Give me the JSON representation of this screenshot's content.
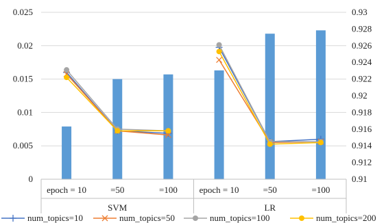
{
  "chart_data": {
    "type": "bar+line",
    "categories": [
      "epoch = 10",
      "=50",
      "=100",
      "epoch = 10",
      "=50",
      "=100"
    ],
    "groups": [
      {
        "label": "SVM",
        "span": [
          0,
          2
        ]
      },
      {
        "label": "LR",
        "span": [
          3,
          5
        ]
      }
    ],
    "bar_series": {
      "axis": "left",
      "color": "#5B9BD5",
      "values": [
        0.0079,
        0.015,
        0.0157,
        0.0163,
        0.0218,
        0.0223
      ]
    },
    "line_series": [
      {
        "name": "num_topics=10",
        "axis": "right",
        "color": "#4472C4",
        "marker": "plus",
        "values": [
          0.9228,
          0.9158,
          0.9155,
          0.9258,
          0.9145,
          0.9148
        ]
      },
      {
        "name": "num_topics=50",
        "axis": "right",
        "color": "#ED7D31",
        "marker": "x",
        "values": [
          0.9226,
          0.9158,
          0.9153,
          0.9243,
          0.9144,
          0.9145
        ]
      },
      {
        "name": "num_topics=100",
        "axis": "right",
        "color": "#A5A5A5",
        "marker": "circle",
        "values": [
          0.9231,
          0.916,
          0.9158,
          0.9261,
          0.9145,
          0.9145
        ]
      },
      {
        "name": "num_topics=200",
        "axis": "right",
        "color": "#FFC000",
        "marker": "circle",
        "values": [
          0.9222,
          0.9158,
          0.9158,
          0.9253,
          0.9142,
          0.9144
        ]
      }
    ],
    "left_axis": {
      "range": [
        0,
        0.025
      ],
      "ticks": [
        0,
        0.005,
        0.01,
        0.015,
        0.02,
        0.025
      ],
      "tick_labels": [
        "0",
        "0.005",
        "0.01",
        "0.015",
        "0.02",
        "0.025"
      ]
    },
    "right_axis": {
      "range": [
        0.91,
        0.93
      ],
      "ticks": [
        0.91,
        0.912,
        0.914,
        0.916,
        0.918,
        0.92,
        0.922,
        0.924,
        0.926,
        0.928,
        0.93
      ],
      "tick_labels": [
        "0.91",
        "0.912",
        "0.914",
        "0.916",
        "0.918",
        "0.92",
        "0.922",
        "0.924",
        "0.926",
        "0.928",
        "0.93"
      ]
    },
    "grid": "horizontal",
    "legend": "bottom",
    "title": "",
    "xlabel": "",
    "ylabel": ""
  }
}
